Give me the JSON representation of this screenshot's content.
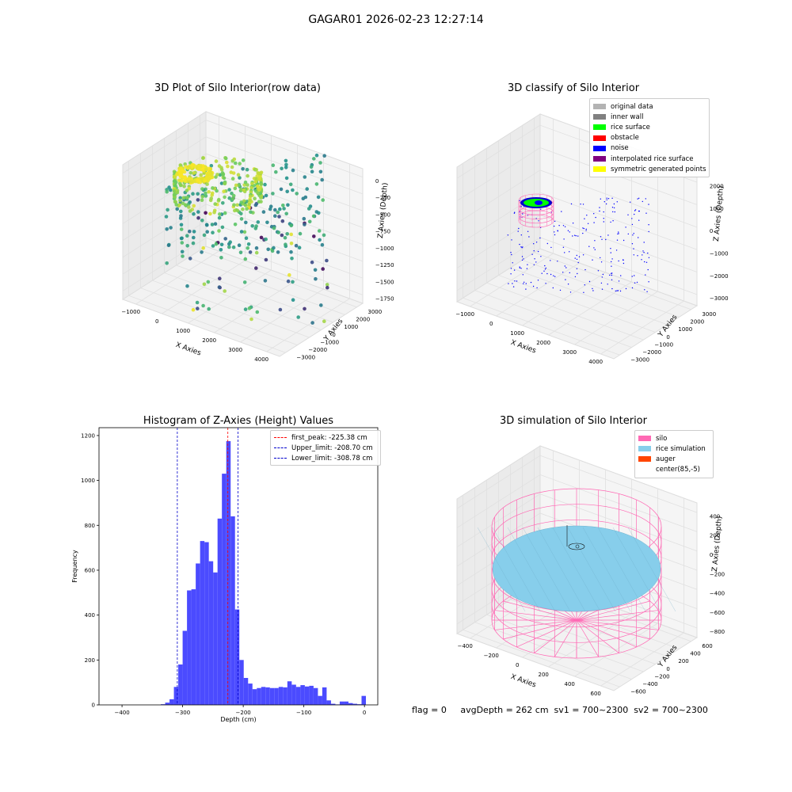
{
  "figure_title": "GAGAR01 2026-02-23 12:27:14",
  "footer_text": "flag = 0     avgDepth = 262 cm  sv1 = 700~2300  sv2 = 700~2300",
  "chart_data": [
    {
      "type": "scatter",
      "projection": "3d",
      "title": "3D Plot of Silo Interior(row data)",
      "xlabel": "X Axies",
      "ylabel": "Y Axies",
      "zlabel": "Z Axies (Depth)",
      "xticks": [
        "−1000",
        "0",
        "1000",
        "2000",
        "3000",
        "4000"
      ],
      "yticks": [
        "−3000",
        "−2000",
        "−1000",
        "0",
        "1000",
        "2000",
        "3000"
      ],
      "zticks": [
        "−1750",
        "−1500",
        "−1250",
        "−1000",
        "−750",
        "−500",
        "−250",
        "0"
      ],
      "colormap": "viridis",
      "grid": true
    },
    {
      "type": "scatter",
      "projection": "3d",
      "title": "3D classify of Silo Interior",
      "xlabel": "X Axies",
      "ylabel": "Y Axies",
      "zlabel": "Z Axies (Depth)",
      "xticks": [
        "−1000",
        "0",
        "1000",
        "2000",
        "3000",
        "4000"
      ],
      "yticks": [
        "−3000",
        "−2000",
        "−1000",
        "0",
        "1000",
        "2000",
        "3000"
      ],
      "zticks": [
        "−3000",
        "−2000",
        "−1000",
        "0",
        "1000",
        "2000"
      ],
      "legend_position": "top-right",
      "series": [
        {
          "name": "original data",
          "color": "#b3b3b3"
        },
        {
          "name": "inner wall",
          "color": "#808080"
        },
        {
          "name": "rice surface",
          "color": "#00ff00"
        },
        {
          "name": "obstacle",
          "color": "#ff0000"
        },
        {
          "name": "noise",
          "color": "#0000ff"
        },
        {
          "name": "interpolated rice surface",
          "color": "#800080"
        },
        {
          "name": "symmetric generated points",
          "color": "#ffff00"
        }
      ],
      "grid": true
    },
    {
      "type": "bar",
      "title": "Histogram of Z-Axies (Height) Values",
      "xlabel": "Depth (cm)",
      "ylabel": "Frequency",
      "xlim": [
        -438,
        22
      ],
      "ylim": [
        0,
        1235
      ],
      "xticks": [
        -400,
        -300,
        -200,
        -100,
        0
      ],
      "xtick_labels": [
        "−400",
        "−300",
        "−200",
        "−100",
        "0"
      ],
      "yticks": [
        0,
        200,
        400,
        600,
        800,
        1000,
        1200
      ],
      "bin_width": 7.2,
      "bars_color": "#4b4bff",
      "bins": [
        {
          "x": -336.0,
          "value": 3
        },
        {
          "x": -328.8,
          "value": 10
        },
        {
          "x": -321.6,
          "value": 25
        },
        {
          "x": -314.4,
          "value": 80
        },
        {
          "x": -307.2,
          "value": 180
        },
        {
          "x": -300.0,
          "value": 330
        },
        {
          "x": -292.8,
          "value": 510
        },
        {
          "x": -285.6,
          "value": 515
        },
        {
          "x": -278.4,
          "value": 630
        },
        {
          "x": -271.2,
          "value": 730
        },
        {
          "x": -264.0,
          "value": 725
        },
        {
          "x": -256.8,
          "value": 640
        },
        {
          "x": -249.6,
          "value": 590
        },
        {
          "x": -242.4,
          "value": 830
        },
        {
          "x": -235.2,
          "value": 1030
        },
        {
          "x": -228.0,
          "value": 1175
        },
        {
          "x": -220.8,
          "value": 840
        },
        {
          "x": -213.6,
          "value": 425
        },
        {
          "x": -206.4,
          "value": 200
        },
        {
          "x": -199.2,
          "value": 120
        },
        {
          "x": -192.0,
          "value": 95
        },
        {
          "x": -184.8,
          "value": 70
        },
        {
          "x": -177.6,
          "value": 75
        },
        {
          "x": -170.4,
          "value": 80
        },
        {
          "x": -163.2,
          "value": 78
        },
        {
          "x": -156.0,
          "value": 75
        },
        {
          "x": -148.8,
          "value": 75
        },
        {
          "x": -141.6,
          "value": 80
        },
        {
          "x": -134.4,
          "value": 78
        },
        {
          "x": -127.2,
          "value": 105
        },
        {
          "x": -120.0,
          "value": 90
        },
        {
          "x": -112.8,
          "value": 80
        },
        {
          "x": -105.6,
          "value": 88
        },
        {
          "x": -98.4,
          "value": 82
        },
        {
          "x": -91.2,
          "value": 85
        },
        {
          "x": -84.0,
          "value": 75
        },
        {
          "x": -76.8,
          "value": 40
        },
        {
          "x": -69.6,
          "value": 78
        },
        {
          "x": -62.4,
          "value": 20
        },
        {
          "x": -55.2,
          "value": 5
        },
        {
          "x": -48.0,
          "value": 2
        },
        {
          "x": -40.8,
          "value": 15
        },
        {
          "x": -33.6,
          "value": 15
        },
        {
          "x": -26.4,
          "value": 8
        },
        {
          "x": -19.2,
          "value": 5
        },
        {
          "x": -12.0,
          "value": 3
        },
        {
          "x": -4.8,
          "value": 40
        }
      ],
      "lines": [
        {
          "label": "first_peak: -225.38 cm",
          "x": -225.38,
          "color": "#ff0000"
        },
        {
          "label": "Upper_limit: -208.70 cm",
          "x": -208.7,
          "color": "#0000cc"
        },
        {
          "label": "Lower_limit: -308.78 cm",
          "x": -308.78,
          "color": "#0000cc"
        }
      ],
      "legend_position": "top-right",
      "grid": false
    },
    {
      "type": "surface",
      "projection": "3d",
      "title": "3D simulation of Silo Interior",
      "xlabel": "X Axies",
      "ylabel": "Y Axies",
      "zlabel": "Z Axies (Depth)",
      "xticks": [
        "−400",
        "−200",
        "0",
        "200",
        "400",
        "600"
      ],
      "yticks": [
        "−600",
        "−400",
        "−200",
        "0",
        "200",
        "400",
        "600"
      ],
      "zticks": [
        "−800",
        "−600",
        "−400",
        "−200",
        "0",
        "200",
        "400"
      ],
      "legend_position": "top-right",
      "series": [
        {
          "name": "silo",
          "color": "#ff69b4"
        },
        {
          "name": "rice simulation",
          "color": "#87ceeb"
        },
        {
          "name": "auger",
          "color": "#ff4500"
        },
        {
          "name": "center(85,-5)",
          "color": "#ffffff"
        }
      ],
      "grid": true
    }
  ]
}
